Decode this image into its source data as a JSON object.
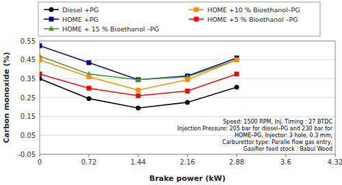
{
  "chart_data": {
    "type": "line",
    "x": [
      0,
      0.72,
      1.44,
      2.16,
      2.88
    ],
    "series": [
      {
        "name": "Diesel +PG",
        "color": "#000000",
        "marker": "circle",
        "values": [
          0.35,
          0.245,
          0.195,
          0.225,
          0.305
        ]
      },
      {
        "name": "HOME +PG",
        "color": "#00008B",
        "marker": "square",
        "values": [
          0.525,
          0.435,
          0.345,
          0.365,
          0.46
        ]
      },
      {
        "name": "HOME + 15 % Bioethanol –PG",
        "color": "#4C9A2A",
        "marker": "triangle",
        "values": [
          0.47,
          0.375,
          0.345,
          0.36,
          0.45
        ]
      },
      {
        "name": "HOME +10 % Bioethanol–PG",
        "color": "#FF8C00",
        "marker": "square",
        "values": [
          0.45,
          0.36,
          0.29,
          0.345,
          0.45
        ]
      },
      {
        "name": "HOME +5 % Bioethanol –PG",
        "color": "#FF0000",
        "marker": "square",
        "values": [
          0.375,
          0.3,
          0.26,
          0.285,
          0.375
        ]
      }
    ],
    "xlabel": "Brake power (kW)",
    "ylabel": "Carbon monoxide (%)",
    "xlim": [
      0,
      4.32
    ],
    "ylim": [
      -0.05,
      0.55
    ],
    "xticks": [
      0,
      0.72,
      1.44,
      2.16,
      2.88,
      3.6,
      4.32
    ],
    "yticks": [
      -0.05,
      0.05,
      0.15,
      0.25,
      0.35,
      0.45,
      0.55
    ],
    "grid": "y",
    "legend": "top",
    "annotations": [
      "Speed: 1500 RPM, Inj. Timing : 27 BTDC",
      "Injection Pressure: 205 bar for diesel–PG and 230 bar for",
      "HOME–PG, Injector: 3 hole, 0.3 mm,",
      "Carburettor type: Paralle  flow gas entry,",
      "Gasifier feed stock : Babul Wood"
    ]
  }
}
